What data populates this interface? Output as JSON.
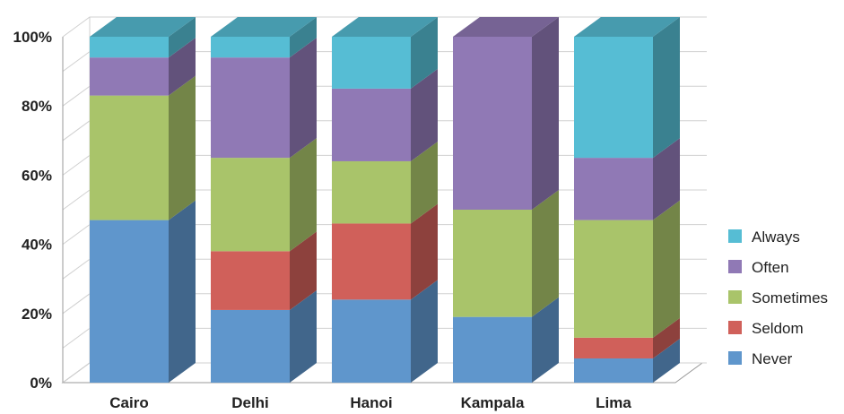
{
  "chart_data": {
    "type": "bar",
    "stacked": true,
    "percent": true,
    "three_d": true,
    "categories": [
      "Cairo",
      "Delhi",
      "Hanoi",
      "Kampala",
      "Lima"
    ],
    "series": [
      {
        "name": "Never",
        "color": "#5f96cc",
        "values": [
          47,
          21,
          24,
          19,
          7
        ]
      },
      {
        "name": "Seldom",
        "color": "#d0605a",
        "values": [
          0,
          17,
          22,
          0,
          6
        ]
      },
      {
        "name": "Sometimes",
        "color": "#a9c46a",
        "values": [
          36,
          27,
          18,
          31,
          34
        ]
      },
      {
        "name": "Often",
        "color": "#9079b5",
        "values": [
          11,
          29,
          21,
          50,
          18
        ]
      },
      {
        "name": "Always",
        "color": "#56bdd4",
        "values": [
          6,
          6,
          15,
          0,
          35
        ]
      }
    ],
    "yticks": [
      "0%",
      "20%",
      "40%",
      "60%",
      "80%",
      "100%"
    ],
    "ylim": [
      0,
      100
    ],
    "grid": true,
    "legend": "right",
    "legend_order": [
      "Always",
      "Often",
      "Sometimes",
      "Seldom",
      "Never"
    ],
    "title": "",
    "xlabel": "",
    "ylabel": ""
  }
}
